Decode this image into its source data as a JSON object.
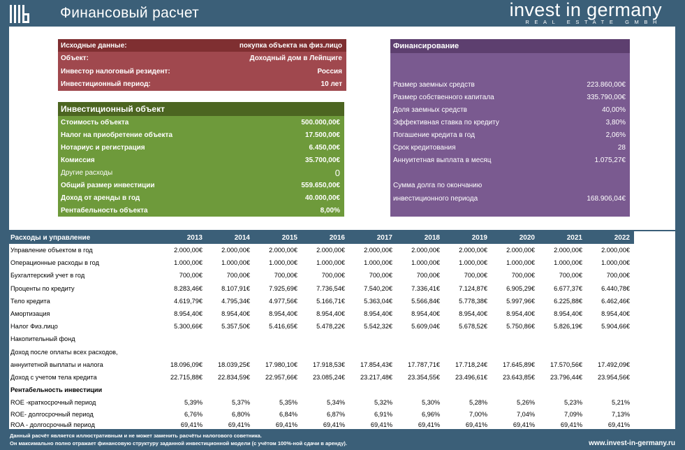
{
  "header": {
    "title": "Финансовый расчет",
    "brand": "invest in germany",
    "brand_sub": "REAL ESTATE GMBH"
  },
  "source": {
    "rows": [
      {
        "label": "Исходные данные:",
        "value": "покупка объекта на физ.лицо"
      },
      {
        "label": "Объект:",
        "value": "Доходный дом в Лейпциге"
      },
      {
        "label": "Инвестор налоговый резидент:",
        "value": "Россия"
      },
      {
        "label": "Инвестиционный период:",
        "value": "10 лет"
      }
    ]
  },
  "investment": {
    "heading": "Инвестиционный объект",
    "rows": [
      {
        "label": "Стоимость объекта",
        "value": "500.000,00€"
      },
      {
        "label": "Налог на приобретение объекта",
        "value": "17.500,00€"
      },
      {
        "label": "Нотариус и регистрация",
        "value": "6.450,00€"
      },
      {
        "label": "Комиссия",
        "value": "35.700,00€"
      },
      {
        "label": "Другие расходы",
        "value": "0"
      },
      {
        "label": "Общий размер инвестиции",
        "value": "559.650,00€"
      },
      {
        "label": "Доход от аренды в год",
        "value": "40.000,00€"
      },
      {
        "label": "Рентабельность объекта",
        "value": "8,00%"
      }
    ]
  },
  "financing": {
    "heading": "Финансирование",
    "rows": [
      {
        "label": "Размер заемных средств",
        "value": "223.860,00€"
      },
      {
        "label": "Размер собственного капитала",
        "value": "335.790,00€"
      },
      {
        "label": "Доля заемных средств",
        "value": "40,00%"
      },
      {
        "label": "Эффективная ставка по кредиту",
        "value": "3,80%"
      },
      {
        "label": "Погашение кредита в год",
        "value": "2,06%"
      },
      {
        "label": "Срок кредитования",
        "value": "28"
      },
      {
        "label": "Аннуитетная выплата в месяц",
        "value": "1.075,27€"
      }
    ],
    "debt_label_1": "Сумма долга по окончанию",
    "debt_label_2": "инвестиционного периода",
    "debt_value": "168.906,04€"
  },
  "table": {
    "heading": "Расходы и управление",
    "years": [
      "2013",
      "2014",
      "2015",
      "2016",
      "2017",
      "2018",
      "2019",
      "2020",
      "2021",
      "2022"
    ],
    "rows": [
      {
        "label": "Управление объектом в год",
        "values": [
          "2.000,00€",
          "2.000,00€",
          "2.000,00€",
          "2.000,00€",
          "2.000,00€",
          "2.000,00€",
          "2.000,00€",
          "2.000,00€",
          "2.000,00€",
          "2.000,00€"
        ]
      },
      {
        "label": "Операционные расходы в год",
        "values": [
          "1.000,00€",
          "1.000,00€",
          "1.000,00€",
          "1.000,00€",
          "1.000,00€",
          "1.000,00€",
          "1.000,00€",
          "1.000,00€",
          "1.000,00€",
          "1.000,00€"
        ]
      },
      {
        "label": "Бухгалтерский учет в год",
        "values": [
          "700,00€",
          "700,00€",
          "700,00€",
          "700,00€",
          "700,00€",
          "700,00€",
          "700,00€",
          "700,00€",
          "700,00€",
          "700,00€"
        ]
      },
      {
        "label": "Проценты по кредиту",
        "values": [
          "8.283,46€",
          "8.107,91€",
          "7.925,69€",
          "7.736,54€",
          "7.540,20€",
          "7.336,41€",
          "7.124,87€",
          "6.905,29€",
          "6.677,37€",
          "6.440,78€"
        ]
      },
      {
        "label": "Тело кредита",
        "values": [
          "4.619,79€",
          "4.795,34€",
          "4.977,56€",
          "5.166,71€",
          "5.363,04€",
          "5.566,84€",
          "5.778,38€",
          "5.997,96€",
          "6.225,88€",
          "6.462,46€"
        ]
      },
      {
        "label": "Амортизация",
        "values": [
          "8.954,40€",
          "8.954,40€",
          "8.954,40€",
          "8.954,40€",
          "8.954,40€",
          "8.954,40€",
          "8.954,40€",
          "8.954,40€",
          "8.954,40€",
          "8.954,40€"
        ]
      },
      {
        "label": "Налог Физ.лицо",
        "values": [
          "5.300,66€",
          "5.357,50€",
          "5.416,65€",
          "5.478,22€",
          "5.542,32€",
          "5.609,04€",
          "5.678,52€",
          "5.750,86€",
          "5.826,19€",
          "5.904,66€"
        ]
      },
      {
        "label": "Накопительный фонд",
        "values": [
          "",
          "",
          "",
          "",
          "",
          "",
          "",
          "",
          "",
          ""
        ]
      },
      {
        "label": "Доход после оплаты всех расходов,",
        "values": [
          "",
          "",
          "",
          "",
          "",
          "",
          "",
          "",
          "",
          ""
        ]
      },
      {
        "label": "аннуитетной выплаты и налога",
        "values": [
          "18.096,09€",
          "18.039,25€",
          "17.980,10€",
          "17.918,53€",
          "17.854,43€",
          "17.787,71€",
          "17.718,24€",
          "17.645,89€",
          "17.570,56€",
          "17.492,09€"
        ]
      },
      {
        "label": "Доход с учетом тела кредита",
        "values": [
          "22.715,88€",
          "22.834,59€",
          "22.957,66€",
          "23.085,24€",
          "23.217,48€",
          "23.354,55€",
          "23.496,61€",
          "23.643,85€",
          "23.796,44€",
          "23.954,56€"
        ]
      },
      {
        "label": "Рентабельность инвестиции",
        "values": [
          "",
          "",
          "",
          "",
          "",
          "",
          "",
          "",
          "",
          ""
        ],
        "bold": true
      },
      {
        "label": "ROE -краткосрочный период",
        "values": [
          "5,39%",
          "5,37%",
          "5,35%",
          "5,34%",
          "5,32%",
          "5,30%",
          "5,28%",
          "5,26%",
          "5,23%",
          "5,21%"
        ]
      },
      {
        "label": "ROE- долгосрочный период",
        "values": [
          "6,76%",
          "6,80%",
          "6,84%",
          "6,87%",
          "6,91%",
          "6,96%",
          "7,00%",
          "7,04%",
          "7,09%",
          "7,13%"
        ],
        "tall": true
      },
      {
        "label": "ROA - долгосрочный период",
        "values": [
          "69,41%",
          "69,41%",
          "69,41%",
          "69,41%",
          "69,41%",
          "69,41%",
          "69,41%",
          "69,41%",
          "69,41%",
          "69,41%"
        ],
        "tall": true
      }
    ]
  },
  "footer": {
    "line1": "Данный расчёт является иллюстративным и не может заменить расчёты налогового советника.",
    "line2": "Он максимально полно отражает финансовую структуру заданной инвестиционной модели (с учётом 100%-ной сдачи в аренду).",
    "site": "www.invest-in-germany.ru"
  }
}
